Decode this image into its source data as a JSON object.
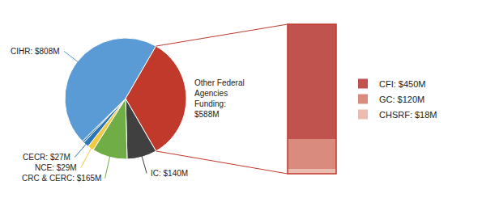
{
  "chart_data": [
    {
      "type": "pie",
      "values": [
        808,
        588,
        140,
        165,
        29,
        27,
        8
      ],
      "colors": [
        "#5b9bd5",
        "#c0392b",
        "#404040",
        "#70ad47",
        "#f4c842",
        "#2e75b6",
        "#2e75b6"
      ],
      "value_labels": [
        "CIHR: $808M",
        "Other Federal\nAgencies\nFunding:\n$588M",
        "IC: $140M",
        "CRC & CERC: $165M",
        "NCE: $29M",
        "CECR: $27M",
        null
      ]
    },
    {
      "type": "bar",
      "stacked": true,
      "categories": [
        null
      ],
      "series": [
        {
          "name": "CFI: $450M",
          "color": "#c0534d",
          "values": [
            450
          ]
        },
        {
          "name": "GC: $120M",
          "color": "#d98b7e",
          "values": [
            120
          ]
        },
        {
          "name": "CHSRF: $18M",
          "color": "#ebbcb0",
          "values": [
            18
          ]
        }
      ],
      "ylim": [
        0,
        588
      ],
      "tick_labels": false,
      "legend": "right"
    }
  ]
}
